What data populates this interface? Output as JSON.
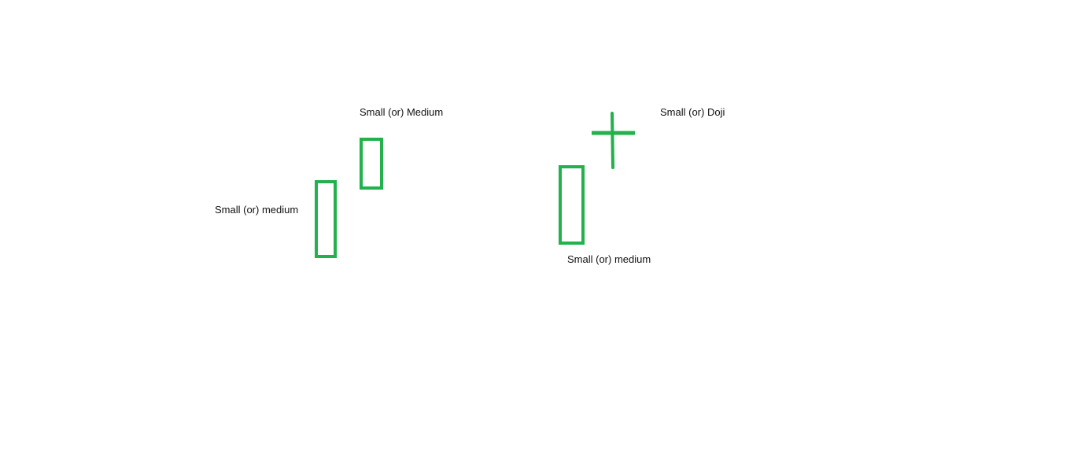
{
  "colors": {
    "candle": "#22b14c",
    "background": "#ffffff",
    "text": "#111111"
  },
  "pattern_left": {
    "candle_1_label": "Small (or) medium",
    "candle_2_label": "Small (or) Medium"
  },
  "pattern_right": {
    "candle_1_label": "Small (or) medium",
    "doji_label": "Small (or) Doji"
  }
}
